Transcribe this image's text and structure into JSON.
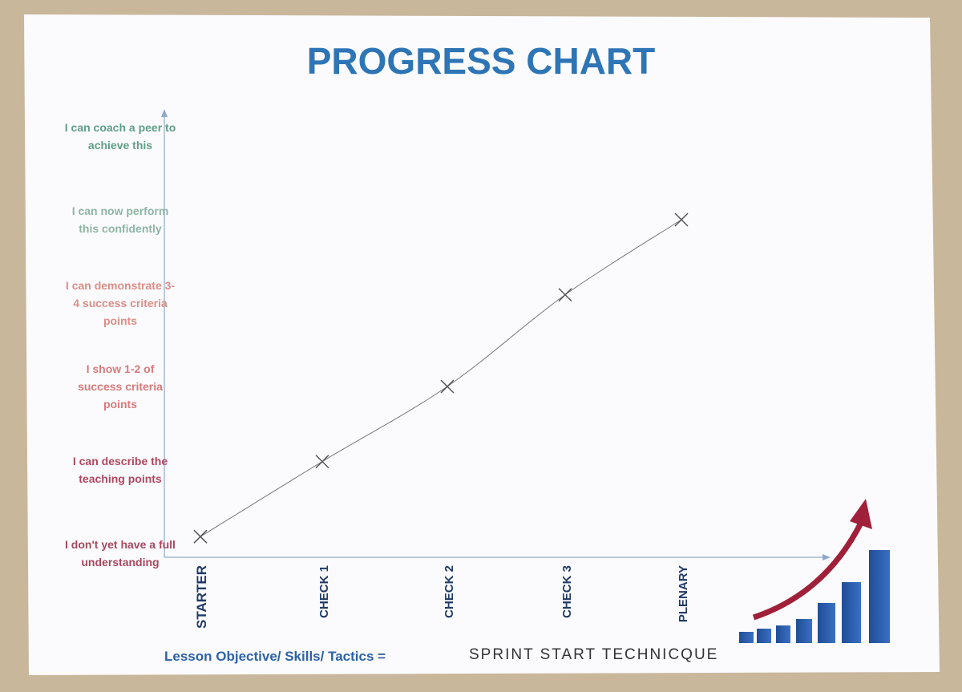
{
  "chart_data": {
    "type": "line",
    "title": "PROGRESS CHART",
    "categories": [
      "STARTER",
      "CHECK 1",
      "CHECK 2",
      "CHECK 3",
      "PLENARY"
    ],
    "values": [
      0.2,
      1.1,
      2,
      3.1,
      4
    ],
    "color": "#777777",
    "ylim": [
      0,
      5.3
    ],
    "yticks": [
      {
        "value": 0,
        "label": "I don't yet have a full understanding"
      },
      {
        "value": 1,
        "label": "I can describe the teaching points"
      },
      {
        "value": 2,
        "label": "I show 1-2 of success criteria points"
      },
      {
        "value": 3,
        "label": "I can demonstrate 3-4 success criteria points"
      },
      {
        "value": 4,
        "label": "I can now perform this confidently"
      },
      {
        "value": 5,
        "label": "I can coach a peer to achieve this"
      }
    ],
    "ytick_colors": [
      "#a8485e",
      "#b0475f",
      "#d87a7a",
      "#de8c85",
      "#8fb5a3",
      "#5f9e86"
    ],
    "footer_label": "Lesson Objective/ Skills/ Tactics =",
    "footer_value": "SPRINT START TECHNICQUE"
  }
}
